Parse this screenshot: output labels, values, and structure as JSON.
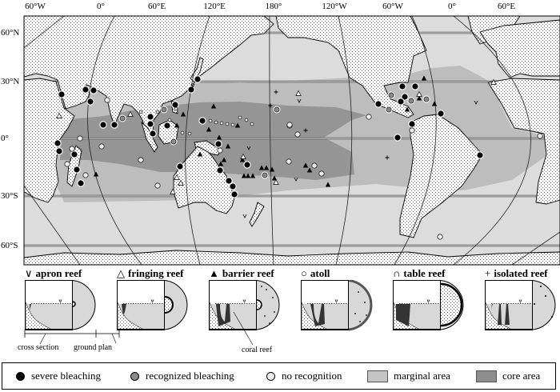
{
  "map": {
    "longitude_labels": [
      "60°W",
      "0°",
      "60°E",
      "120°E",
      "180°",
      "120°W",
      "60°W",
      "0°",
      "60°E"
    ],
    "latitude_labels": [
      "60°N",
      "30°N",
      "0°",
      "30°S",
      "60°S"
    ],
    "colors": {
      "ocean": "#dcdcdc",
      "marginal_area": "#bdbdbd",
      "core_area": "#959595",
      "land": "#ffffff",
      "severe_bleaching": "#000000",
      "recognized_bleaching": "#8a8a8a",
      "no_recognition": "#eeeeee"
    }
  },
  "reef_types": [
    {
      "symbol": "∨",
      "label": "apron reef"
    },
    {
      "symbol": "△",
      "label": "fringing reef"
    },
    {
      "symbol": "▲",
      "label": "barrier reef"
    },
    {
      "symbol": "○",
      "label": "atoll"
    },
    {
      "symbol": "∩",
      "label": "table reef"
    },
    {
      "symbol": "+",
      "label": "isolated reef"
    }
  ],
  "annotations": {
    "cross_section": "cross section",
    "ground_plan": "ground plan",
    "coral_reef": "coral reef"
  },
  "legend": [
    {
      "key": "severe",
      "label": "severe bleaching"
    },
    {
      "key": "recognized",
      "label": "recognized bleaching"
    },
    {
      "key": "none",
      "label": "no recognition"
    },
    {
      "key": "marginal",
      "label": "marginal area"
    },
    {
      "key": "core",
      "label": "core area"
    }
  ]
}
